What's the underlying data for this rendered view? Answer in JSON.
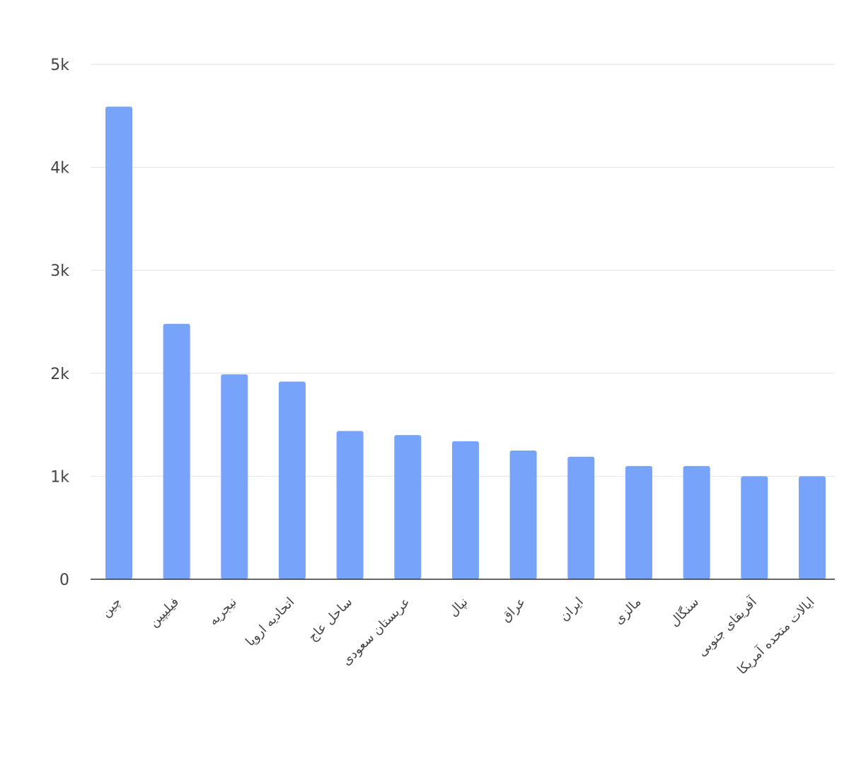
{
  "chart_data": {
    "type": "bar",
    "title": "",
    "xlabel": "",
    "ylabel": "",
    "categories": [
      "چین",
      "فیلیپین",
      "نیجریه",
      "اتحادیه اروپا",
      "ساحل عاج",
      "عربستان سعودی",
      "نپال",
      "عراق",
      "ایران",
      "مالزی",
      "سنگال",
      "آفریقای جنوبی",
      "ایالات متحده آمریکا"
    ],
    "values": [
      4590,
      2480,
      1990,
      1920,
      1440,
      1400,
      1340,
      1250,
      1190,
      1100,
      1100,
      1000,
      1000
    ],
    "ylim": [
      0,
      5000
    ],
    "yticks": [
      0,
      1000,
      2000,
      3000,
      4000,
      5000
    ],
    "ytick_labels": [
      "0",
      "1k",
      "2k",
      "3k",
      "4k",
      "5k"
    ],
    "grid": true,
    "legend": "none",
    "bar_color": "#77a3fb",
    "grid_color": "#e2e2e2",
    "axis_color": "#333333"
  }
}
